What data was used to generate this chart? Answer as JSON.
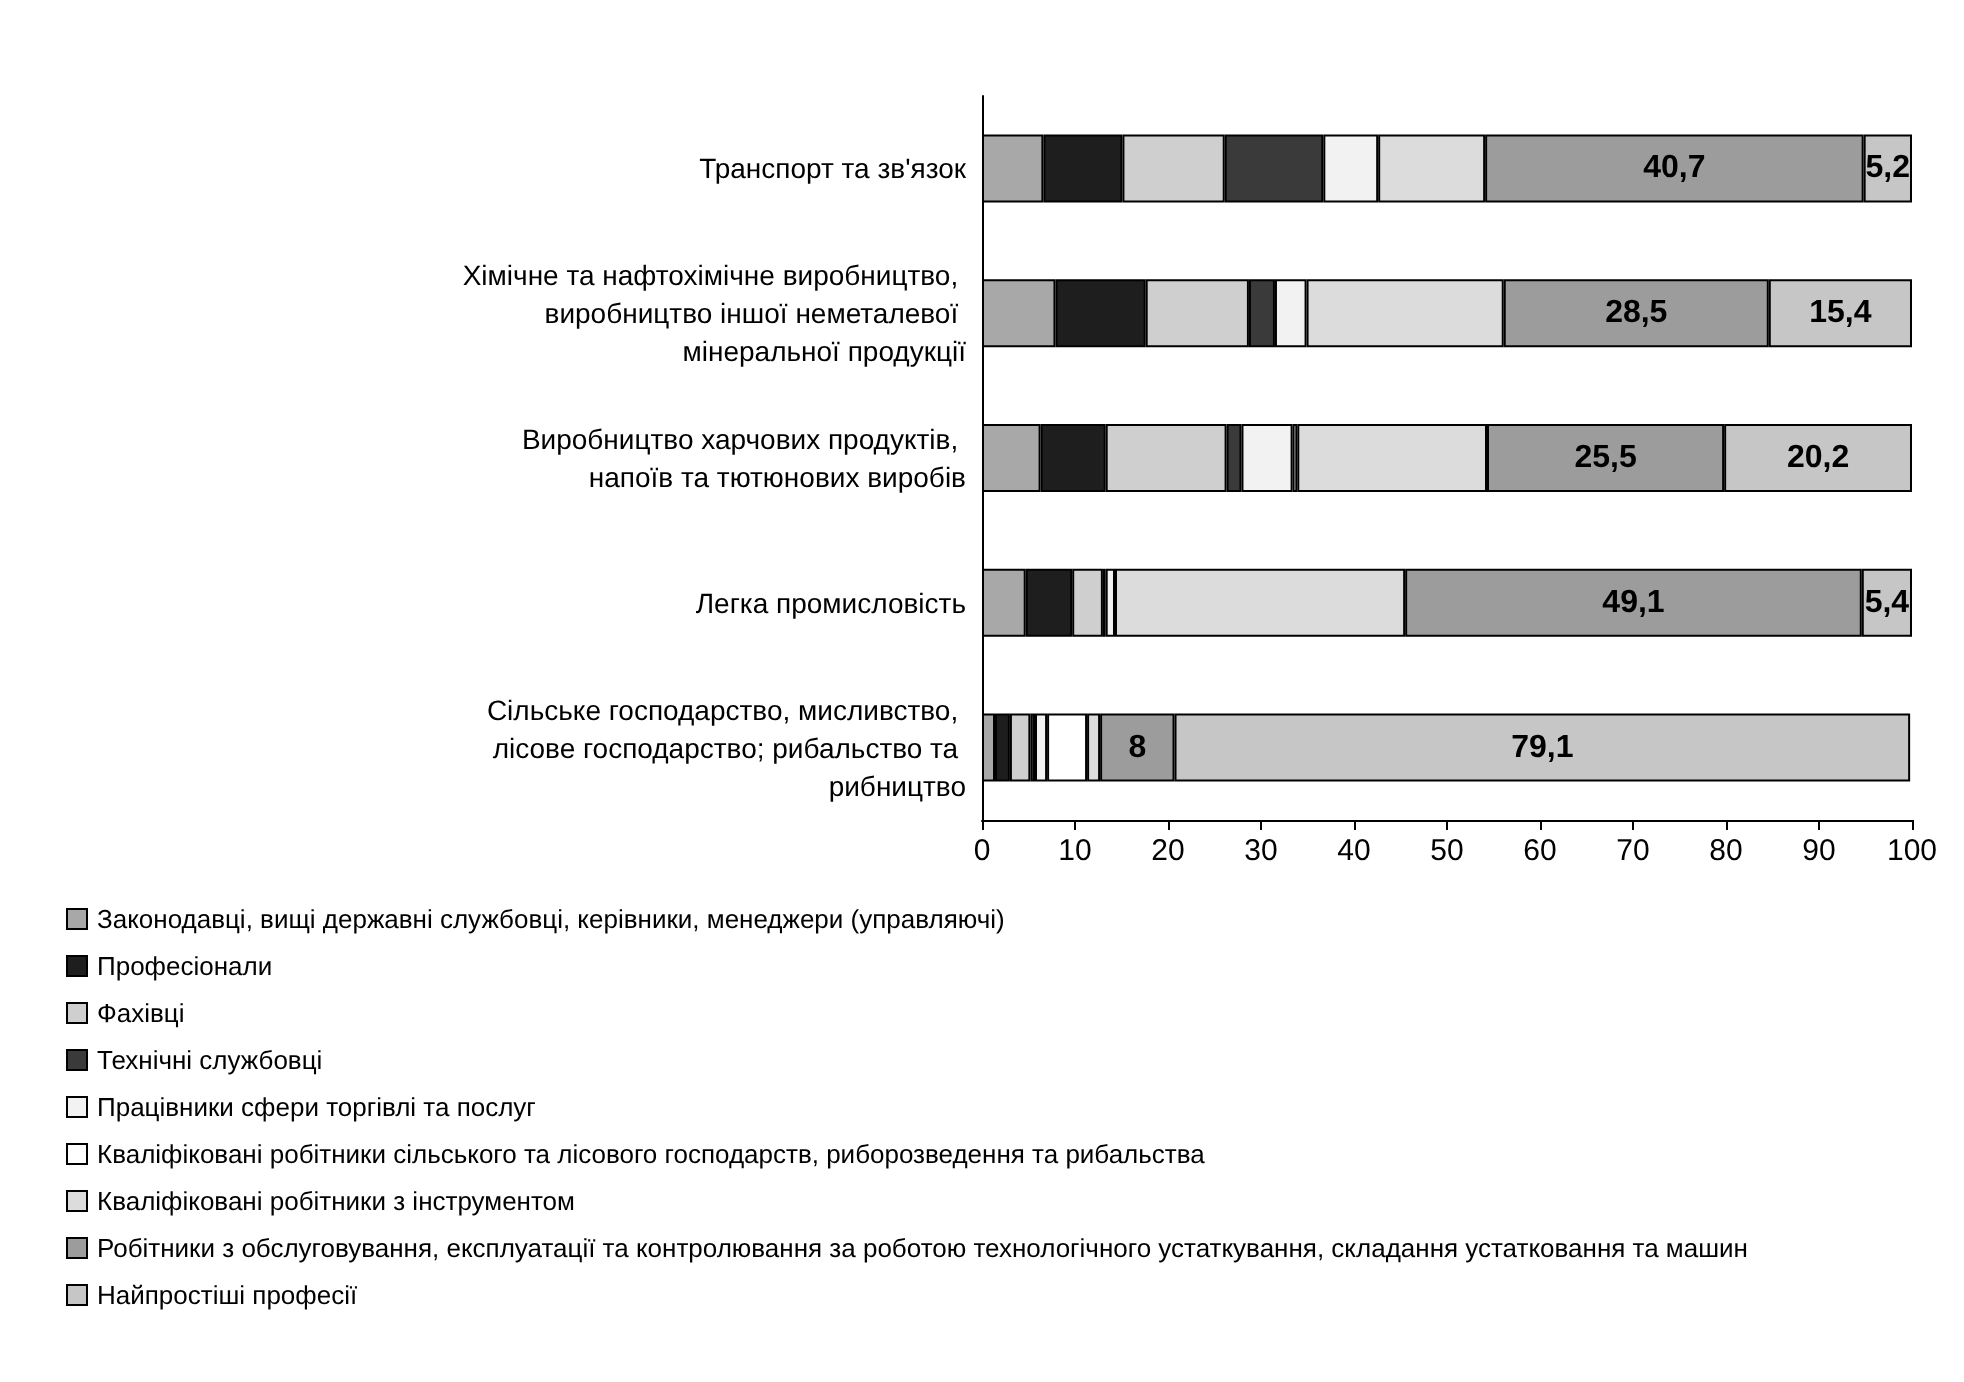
{
  "chart_data": {
    "type": "bar",
    "orientation": "horizontal",
    "stacked": true,
    "categories": [
      "Транспорт та зв'язок",
      "Хімічне та нафтохімічне виробництво, виробництво іншої неметалевої мінеральної продукції",
      "Виробництво харчових продуктів, напоїв та тютюнових виробів",
      "Легка промисловість",
      "Сільське господарство, мисливство, лісове господарство; рибальство та рибництво"
    ],
    "series": [
      {
        "name": "Законодавці, вищі державні службовці, керівники, менеджери (управляючі)",
        "color": "#a8a8a8",
        "values": [
          6.6,
          7.9,
          6.3,
          4.7,
          1.4
        ]
      },
      {
        "name": "Професіонали",
        "color": "#1e1e1e",
        "values": [
          8.5,
          9.7,
          7.0,
          5.0,
          1.6
        ]
      },
      {
        "name": "Фахівці",
        "color": "#cfcfcf",
        "values": [
          11.0,
          11.1,
          13.0,
          3.3,
          2.2
        ]
      },
      {
        "name": "Технічні службовці",
        "color": "#3a3a3a",
        "values": [
          10.6,
          2.8,
          1.6,
          0.3,
          0.5
        ]
      },
      {
        "name": "Працівники сфери торгівлі та послуг",
        "color": "#f2f2f2",
        "values": [
          5.9,
          3.4,
          5.5,
          1.0,
          1.3
        ]
      },
      {
        "name": "Кваліфіковані робітники сільського та лісового господарств, риборозведення та рибальства",
        "color": "#ffffff",
        "values": [
          null,
          null,
          0.5,
          null,
          4.3
        ]
      },
      {
        "name": "Кваліфіковані робітники з інструментом",
        "color": "#dcdcdc",
        "values": [
          11.5,
          21.2,
          20.4,
          31.2,
          1.4
        ]
      },
      {
        "name": "Робітники з обслуговування, експлуатації та контролювання за роботою технологічного устаткування, складання устатковання та машин",
        "color": "#9c9c9c",
        "values": [
          40.7,
          28.5,
          25.5,
          49.1,
          8
        ],
        "value_labels": [
          "40,7",
          "28,5",
          "25,5",
          "49,1",
          "8"
        ]
      },
      {
        "name": "Найпростіші професії",
        "color": "#c6c6c6",
        "values": [
          5.2,
          15.4,
          20.2,
          5.4,
          79.1
        ],
        "value_labels": [
          "5,2",
          "15,4",
          "20,2",
          "5,4",
          "79,1"
        ]
      }
    ],
    "xlim": [
      0,
      100
    ],
    "xticks": [
      0,
      10,
      20,
      30,
      40,
      50,
      60,
      70,
      80,
      90,
      100
    ],
    "grid": false,
    "legend": "bottom left"
  }
}
